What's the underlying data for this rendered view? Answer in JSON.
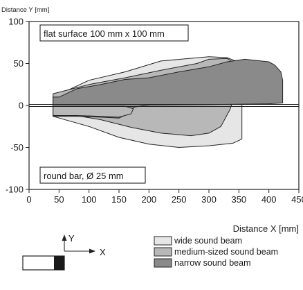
{
  "chart_data": {
    "type": "area",
    "ylabel": "Distance Y [mm]",
    "xlabel": "Distance X [mm]",
    "xlim": [
      0,
      450
    ],
    "ylim": [
      -100,
      100
    ],
    "x_ticks": [
      "0",
      "50",
      "100",
      "150",
      "200",
      "250",
      "300",
      "350",
      "400",
      "450"
    ],
    "y_ticks": [
      "100",
      "50",
      "0",
      "-50",
      "-100"
    ],
    "x_tick_values": [
      0,
      50,
      100,
      150,
      200,
      250,
      300,
      350,
      400,
      450
    ],
    "y_tick_values": [
      100,
      50,
      0,
      -50,
      -100
    ],
    "grid": false,
    "annotations": [
      "flat surface 100 mm x 100 mm",
      "round bar, Ø 25 mm"
    ],
    "colors": {
      "wide": "#e6e6e6",
      "medium": "#b8b8b8",
      "narrow": "#8a8a8a",
      "outline": "#222222"
    },
    "series": [
      {
        "name": "wide sound beam",
        "color": "#e6e6e6",
        "points": [
          [
            40,
            10
          ],
          [
            100,
            30
          ],
          [
            160,
            40
          ],
          [
            220,
            53
          ],
          [
            300,
            58
          ],
          [
            330,
            57
          ],
          [
            355,
            50
          ],
          [
            355,
            -40
          ],
          [
            340,
            -45
          ],
          [
            300,
            -48
          ],
          [
            250,
            -50
          ],
          [
            200,
            -46
          ],
          [
            150,
            -38
          ],
          [
            100,
            -25
          ],
          [
            40,
            -13
          ]
        ]
      },
      {
        "name": "medium-sized sound beam",
        "color": "#b8b8b8",
        "points": [
          [
            40,
            14
          ],
          [
            100,
            25
          ],
          [
            160,
            33
          ],
          [
            220,
            42
          ],
          [
            280,
            50
          ],
          [
            300,
            55
          ],
          [
            330,
            56
          ],
          [
            345,
            50
          ],
          [
            345,
            15
          ],
          [
            335,
            -5
          ],
          [
            320,
            -25
          ],
          [
            300,
            -33
          ],
          [
            270,
            -36
          ],
          [
            220,
            -33
          ],
          [
            170,
            -26
          ],
          [
            120,
            -17
          ],
          [
            70,
            -11
          ],
          [
            40,
            -13
          ]
        ]
      },
      {
        "name": "narrow sound beam",
        "color": "#8a8a8a",
        "points": [
          [
            40,
            10
          ],
          [
            50,
            10
          ],
          [
            80,
            20
          ],
          [
            120,
            25
          ],
          [
            160,
            31
          ],
          [
            200,
            33
          ],
          [
            250,
            40
          ],
          [
            300,
            46
          ],
          [
            330,
            52
          ],
          [
            360,
            55
          ],
          [
            400,
            52
          ],
          [
            410,
            48
          ],
          [
            420,
            40
          ],
          [
            423,
            30
          ],
          [
            423,
            3
          ],
          [
            400,
            2
          ],
          [
            300,
            1
          ],
          [
            200,
            0.5
          ],
          [
            175,
            -2
          ],
          [
            165,
            -10
          ],
          [
            150,
            -15
          ],
          [
            120,
            -14
          ],
          [
            80,
            -13
          ],
          [
            40,
            -13
          ]
        ]
      }
    ],
    "round_bar": {
      "name": "round bar",
      "color": "#b8b8b8",
      "points": [
        [
          40,
          -1
        ],
        [
          160,
          -1
        ],
        [
          174,
          -4
        ],
        [
          170,
          -10
        ],
        [
          150,
          -14
        ],
        [
          120,
          -13
        ],
        [
          80,
          -12
        ],
        [
          40,
          -12
        ]
      ]
    },
    "legend_position": "bottom-right"
  },
  "sensor_diagram": {
    "y_axis_label": "Y",
    "x_axis_label": "X"
  }
}
